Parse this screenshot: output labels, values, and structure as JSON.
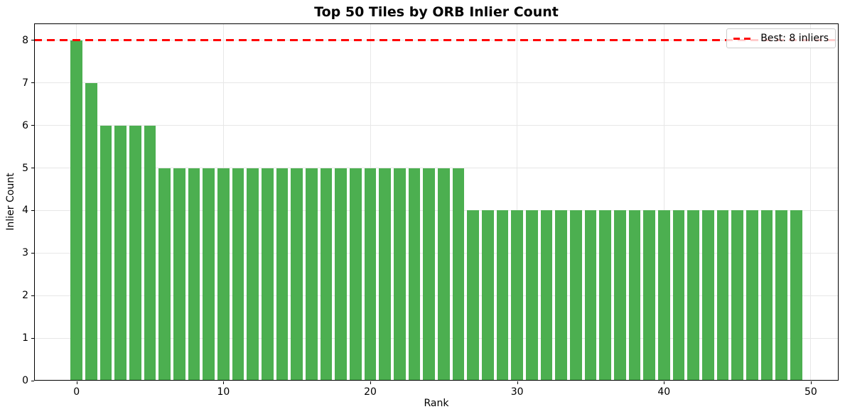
{
  "chart_data": {
    "type": "bar",
    "title": "Top 50 Tiles by ORB Inlier Count",
    "xlabel": "Rank",
    "ylabel": "Inlier Count",
    "x": [
      0,
      1,
      2,
      3,
      4,
      5,
      6,
      7,
      8,
      9,
      10,
      11,
      12,
      13,
      14,
      15,
      16,
      17,
      18,
      19,
      20,
      21,
      22,
      23,
      24,
      25,
      26,
      27,
      28,
      29,
      30,
      31,
      32,
      33,
      34,
      35,
      36,
      37,
      38,
      39,
      40,
      41,
      42,
      43,
      44,
      45,
      46,
      47,
      48,
      49
    ],
    "values": [
      8,
      7,
      6,
      6,
      6,
      6,
      5,
      5,
      5,
      5,
      5,
      5,
      5,
      5,
      5,
      5,
      5,
      5,
      5,
      5,
      5,
      5,
      5,
      5,
      5,
      5,
      5,
      4,
      4,
      4,
      4,
      4,
      4,
      4,
      4,
      4,
      4,
      4,
      4,
      4,
      4,
      4,
      4,
      4,
      4,
      4,
      4,
      4,
      4,
      4
    ],
    "bar_color": "#4caf50",
    "bar_width": 0.8,
    "xlim": [
      -2.89,
      51.89
    ],
    "ylim": [
      0,
      8.4
    ],
    "xticks": [
      0,
      10,
      20,
      30,
      40,
      50
    ],
    "yticks": [
      0,
      1,
      2,
      3,
      4,
      5,
      6,
      7,
      8
    ],
    "grid": true,
    "grid_color": "#e7e7e7",
    "best_line": {
      "y": 8,
      "color": "#ff0000",
      "style": "dashed",
      "label": "Best: 8 inliers"
    },
    "legend_position": "upper right"
  }
}
